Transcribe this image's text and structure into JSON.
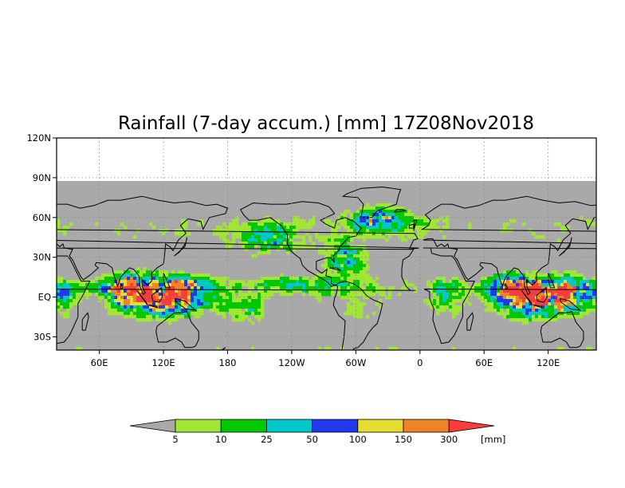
{
  "title": "Rainfall (7-day accum.) [mm] 17Z08Nov2018",
  "map": {
    "lat_ticks": [
      "120N",
      "90N",
      "60N",
      "30N",
      "EQ",
      "30S"
    ],
    "lon_ticks": [
      "60E",
      "120E",
      "180",
      "120W",
      "60W",
      "0",
      "60E",
      "120E"
    ],
    "lon_range": [
      20,
      525
    ],
    "lat_range": [
      -40,
      120
    ],
    "data_lat_range": [
      -40,
      90
    ],
    "grid": true,
    "land_color": "#a9a9a9",
    "no_data_color": "#ffffff"
  },
  "colorbar": {
    "labels": [
      "5",
      "10",
      "25",
      "50",
      "100",
      "150",
      "300"
    ],
    "units": "[mm]",
    "colors": [
      "#a9a9a9",
      "#a0e632",
      "#00c800",
      "#00c8c8",
      "#2038f0",
      "#e6dc32",
      "#f08228",
      "#fa3c3c"
    ]
  }
}
